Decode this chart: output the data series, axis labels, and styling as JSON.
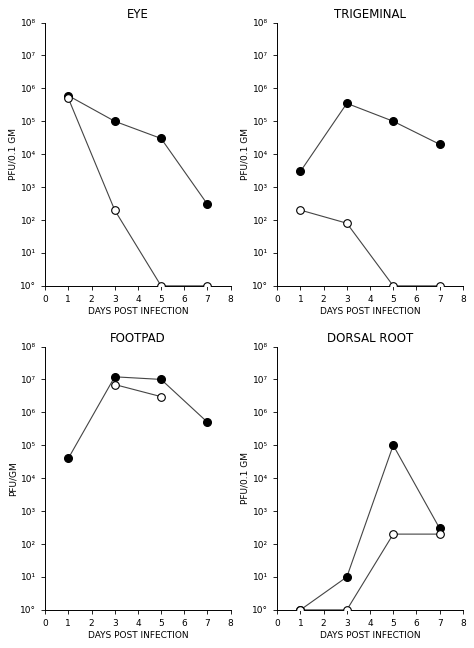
{
  "subplots": [
    {
      "title": "EYE",
      "ylabel": "PFU/0.1 GM",
      "ylim": [
        1.0,
        100000000.0
      ],
      "yticks": [
        1.0,
        10.0,
        100.0,
        1000.0,
        10000.0,
        100000.0,
        1000000.0,
        10000000.0,
        100000000.0
      ],
      "ytick_labels": [
        "10°",
        "10¹",
        "10²",
        "10³",
        "10⁴",
        "10⁵",
        "10⁶",
        "10⁷",
        "10⁸"
      ],
      "filled": {
        "x": [
          1,
          3,
          5,
          7
        ],
        "y": [
          600000.0,
          100000.0,
          30000.0,
          300.0
        ]
      },
      "open": {
        "x": [
          1,
          3,
          5,
          7
        ],
        "y": [
          500000.0,
          200.0,
          1.0,
          1.0
        ]
      }
    },
    {
      "title": "TRIGEMINAL",
      "ylabel": "PFU/0.1 GM",
      "ylim": [
        1.0,
        100000000.0
      ],
      "yticks": [
        1.0,
        10.0,
        100.0,
        1000.0,
        10000.0,
        100000.0,
        1000000.0,
        10000000.0,
        100000000.0
      ],
      "ytick_labels": [
        "10°",
        "10¹",
        "10²",
        "10³",
        "10⁴",
        "10⁵",
        "10⁶",
        "10⁷",
        "10⁸"
      ],
      "filled": {
        "x": [
          1,
          3,
          5,
          7
        ],
        "y": [
          3000.0,
          350000.0,
          100000.0,
          20000.0
        ]
      },
      "open": {
        "x": [
          1,
          3,
          5,
          7
        ],
        "y": [
          200.0,
          80.0,
          1.0,
          1.0
        ]
      }
    },
    {
      "title": "FOOTPAD",
      "ylabel": "PFU/GM",
      "ylim": [
        1.0,
        100000000.0
      ],
      "yticks": [
        1.0,
        10.0,
        100.0,
        1000.0,
        10000.0,
        100000.0,
        1000000.0,
        10000000.0,
        100000000.0
      ],
      "ytick_labels": [
        "10°",
        "10¹",
        "10²",
        "10³",
        "10⁴",
        "10⁵",
        "10⁶",
        "10⁷",
        "10⁸"
      ],
      "filled": {
        "x": [
          1,
          3,
          5,
          7
        ],
        "y": [
          40000.0,
          12000000.0,
          10000000.0,
          500000.0
        ]
      },
      "open": {
        "x": [
          3,
          5
        ],
        "y": [
          7000000.0,
          3000000.0
        ]
      }
    },
    {
      "title": "DORSAL ROOT",
      "ylabel": "PFU/0.1 GM",
      "ylim": [
        1.0,
        100000000.0
      ],
      "yticks": [
        1.0,
        10.0,
        100.0,
        1000.0,
        10000.0,
        100000.0,
        1000000.0,
        10000000.0,
        100000000.0
      ],
      "ytick_labels": [
        "10°",
        "10¹",
        "10²",
        "10³",
        "10⁴",
        "10⁵",
        "10⁶",
        "10⁷",
        "10⁸"
      ],
      "filled": {
        "x": [
          1,
          3,
          5,
          7
        ],
        "y": [
          1.0,
          10.0,
          100000.0,
          300.0
        ]
      },
      "open": {
        "x": [
          1,
          3,
          5,
          7
        ],
        "y": [
          1.0,
          1.0,
          200.0,
          200.0
        ]
      }
    }
  ],
  "xlim": [
    0,
    8
  ],
  "xticks": [
    0,
    1,
    2,
    3,
    4,
    5,
    6,
    7,
    8
  ],
  "xlabel": "DAYS POST INFECTION",
  "marker_size": 5.5,
  "line_color": "#444444",
  "line_width": 0.8,
  "filled_color": "#000000",
  "open_color": "#ffffff",
  "open_edge_color": "#000000",
  "open_edge_width": 0.8,
  "tick_labelsize": 6.5,
  "xlabel_fontsize": 6.5,
  "ylabel_fontsize": 6.5,
  "title_fontsize": 8.5
}
